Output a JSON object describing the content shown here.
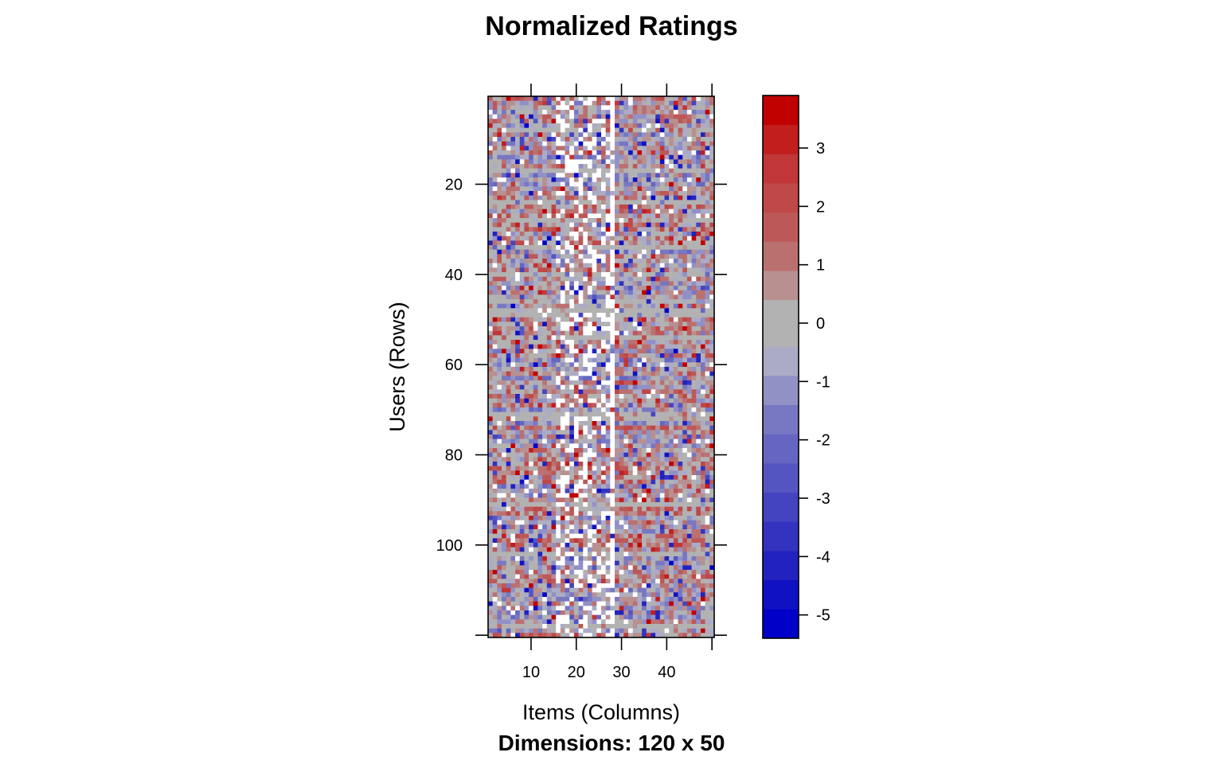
{
  "chart_data": {
    "type": "heatmap",
    "title": "Normalized Ratings",
    "subtitle": "Dimensions: 120 x 50",
    "xlabel": "Items (Columns)",
    "ylabel": "Users (Rows)",
    "n_rows": 120,
    "n_cols": 50,
    "xlim": [
      0.5,
      50.5
    ],
    "ylim": [
      120.5,
      0.5
    ],
    "x_ticks": [
      10,
      20,
      30,
      40
    ],
    "y_ticks": [
      20,
      40,
      60,
      80,
      100
    ],
    "missing_color": "#ffffff",
    "colorbar": {
      "range": [
        -5.4,
        3.9
      ],
      "ticks": [
        3,
        2,
        1,
        0,
        -1,
        -2,
        -3,
        -4,
        -5
      ],
      "breaks": [
        -5.4,
        -4.9,
        -4.4,
        -3.9,
        -3.4,
        -2.9,
        -2.4,
        -1.9,
        -1.4,
        -0.9,
        -0.4,
        0.4,
        0.9,
        1.4,
        1.9,
        2.4,
        2.9,
        3.4,
        3.9
      ],
      "colors": [
        "#0000c8",
        "#1111c4",
        "#2222c0",
        "#3333c0",
        "#4444c0",
        "#5555c2",
        "#6666c2",
        "#7777c2",
        "#9191c6",
        "#ababc6",
        "#b2b2b2",
        "#b89090",
        "#bb7070",
        "#bd5858",
        "#bf4848",
        "#c13636",
        "#c21e1e",
        "#c10000"
      ]
    }
  }
}
